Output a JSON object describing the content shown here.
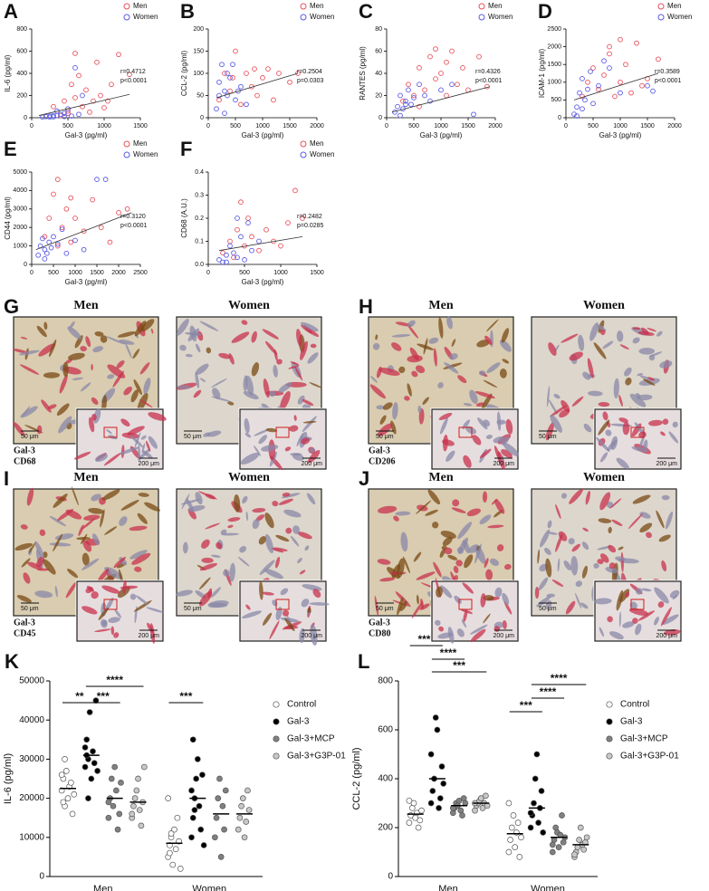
{
  "chart_data": [
    {
      "type": "scatter",
      "label": "A",
      "xlabel": "Gal-3 (pg/ml)",
      "ylabel": "IL-6 (pg/ml)",
      "xlim": [
        0,
        1500
      ],
      "xticks": [
        0,
        500,
        1000,
        1500
      ],
      "ylim": [
        0,
        800
      ],
      "yticks": [
        0,
        200,
        400,
        600,
        800
      ],
      "legend": "upper right",
      "annotations": [
        "r=0.4712",
        "p<0.0001"
      ],
      "fit": {
        "x": [
          100,
          1350
        ],
        "y": [
          20,
          210
        ]
      },
      "series": [
        {
          "name": "Men",
          "color": "#e8505b",
          "x": [
            300,
            400,
            450,
            500,
            550,
            600,
            650,
            700,
            750,
            800,
            850,
            900,
            950,
            1000,
            1050,
            1100,
            1200,
            1350,
            600,
            500
          ],
          "values": [
            100,
            20,
            150,
            60,
            300,
            180,
            380,
            100,
            250,
            50,
            150,
            500,
            200,
            90,
            150,
            300,
            570,
            390,
            580,
            40
          ]
        },
        {
          "name": "Women",
          "color": "#5a5ae6",
          "x": [
            150,
            200,
            250,
            300,
            350,
            400,
            450,
            500,
            550,
            600,
            650,
            700,
            250,
            350,
            450,
            300
          ],
          "values": [
            5,
            10,
            15,
            8,
            20,
            30,
            10,
            80,
            15,
            450,
            30,
            200,
            5,
            60,
            40,
            20
          ]
        }
      ]
    },
    {
      "type": "scatter",
      "label": "B",
      "xlabel": "Gal-3 (pg/ml)",
      "ylabel": "CCL-2 (pg/ml)",
      "xlim": [
        0,
        2000
      ],
      "xticks": [
        0,
        500,
        1000,
        1500,
        2000
      ],
      "ylim": [
        0,
        200
      ],
      "yticks": [
        0,
        50,
        100,
        150,
        200
      ],
      "legend": "upper right",
      "annotations": [
        "r=0.2504",
        "p=0.0303"
      ],
      "fit": {
        "x": [
          150,
          1650
        ],
        "y": [
          45,
          100
        ]
      },
      "series": [
        {
          "name": "Men",
          "color": "#e8505b",
          "x": [
            200,
            300,
            400,
            500,
            600,
            700,
            800,
            900,
            1000,
            1100,
            1200,
            1300,
            1500,
            1650,
            450,
            850
          ],
          "values": [
            40,
            100,
            60,
            150,
            30,
            100,
            70,
            50,
            90,
            110,
            40,
            100,
            80,
            100,
            90,
            110
          ]
        },
        {
          "name": "Women",
          "color": "#5a5ae6",
          "x": [
            150,
            200,
            250,
            300,
            350,
            400,
            450,
            500,
            550,
            600,
            300,
            200,
            350,
            700
          ],
          "values": [
            20,
            80,
            120,
            60,
            50,
            90,
            120,
            40,
            60,
            70,
            10,
            50,
            100,
            30
          ]
        }
      ]
    },
    {
      "type": "scatter",
      "label": "C",
      "xlabel": "Gal-3 (pg/ml)",
      "ylabel": "RANTES (pg/ml)",
      "xlim": [
        0,
        2000
      ],
      "xticks": [
        0,
        500,
        1000,
        1500,
        2000
      ],
      "ylim": [
        0,
        80
      ],
      "yticks": [
        0,
        20,
        40,
        60,
        80
      ],
      "legend": "upper right",
      "annotations": [
        "r=0.4326",
        "p<0.0001"
      ],
      "fit": {
        "x": [
          100,
          1900
        ],
        "y": [
          5,
          28
        ]
      },
      "series": [
        {
          "name": "Men",
          "color": "#e8505b",
          "x": [
            300,
            400,
            500,
            600,
            700,
            800,
            900,
            1000,
            1100,
            1200,
            1300,
            1400,
            1500,
            1700,
            1850,
            600,
            900,
            1100
          ],
          "values": [
            15,
            30,
            20,
            45,
            25,
            55,
            35,
            40,
            20,
            60,
            30,
            45,
            25,
            55,
            28,
            10,
            62,
            50
          ]
        },
        {
          "name": "Women",
          "color": "#5a5ae6",
          "x": [
            150,
            200,
            250,
            300,
            350,
            400,
            450,
            500,
            600,
            700,
            800,
            1000,
            1200,
            1600,
            250,
            350
          ],
          "values": [
            5,
            10,
            20,
            8,
            15,
            25,
            12,
            18,
            30,
            20,
            15,
            25,
            30,
            3,
            2,
            12
          ]
        }
      ]
    },
    {
      "type": "scatter",
      "label": "D",
      "xlabel": "Gal-3 (pg/ml)",
      "ylabel": "ICAM-1 (pg/ml)",
      "xlim": [
        0,
        2000
      ],
      "xticks": [
        0,
        500,
        1000,
        1500,
        2000
      ],
      "ylim": [
        0,
        2500
      ],
      "yticks": [
        0,
        500,
        1000,
        1500,
        2000,
        2500
      ],
      "legend": "upper right",
      "annotations": [
        "r=0.3589",
        "p<0.0001"
      ],
      "fit": {
        "x": [
          150,
          1700
        ],
        "y": [
          500,
          1250
        ]
      },
      "series": [
        {
          "name": "Men",
          "color": "#e8505b",
          "x": [
            300,
            400,
            500,
            600,
            700,
            800,
            900,
            1000,
            1100,
            1200,
            1300,
            1400,
            1500,
            1700,
            800,
            1000
          ],
          "values": [
            600,
            1000,
            1400,
            800,
            1200,
            1800,
            600,
            1000,
            1500,
            700,
            2100,
            900,
            1100,
            1650,
            2000,
            2200
          ]
        },
        {
          "name": "Women",
          "color": "#5a5ae6",
          "x": [
            150,
            200,
            250,
            300,
            350,
            400,
            450,
            500,
            600,
            700,
            800,
            1000,
            1500,
            1600,
            200,
            300
          ],
          "values": [
            100,
            300,
            700,
            1100,
            500,
            800,
            1300,
            400,
            900,
            1600,
            1400,
            700,
            900,
            750,
            50,
            250
          ]
        }
      ]
    },
    {
      "type": "scatter",
      "label": "E",
      "xlabel": "Gal-3 (pg/ml)",
      "ylabel": "CD44 (pg/ml)",
      "xlim": [
        0,
        2500
      ],
      "xticks": [
        0,
        500,
        1000,
        1500,
        2000,
        2500
      ],
      "ylim": [
        0,
        5000
      ],
      "yticks": [
        0,
        1000,
        2000,
        3000,
        4000,
        5000
      ],
      "legend": "upper right",
      "annotations": [
        "r=0.3120",
        "p<0.0001"
      ],
      "fit": {
        "x": [
          100,
          2300
        ],
        "y": [
          800,
          2800
        ]
      },
      "series": [
        {
          "name": "Men",
          "color": "#e8505b",
          "x": [
            300,
            400,
            500,
            600,
            700,
            800,
            900,
            1000,
            1200,
            1400,
            1600,
            1800,
            2000,
            2200,
            600,
            900
          ],
          "values": [
            1500,
            2500,
            3800,
            1000,
            2000,
            3000,
            1200,
            2500,
            1800,
            3500,
            2000,
            1200,
            2800,
            3000,
            4600,
            3600
          ]
        },
        {
          "name": "Women",
          "color": "#5a5ae6",
          "x": [
            150,
            200,
            250,
            300,
            350,
            400,
            450,
            500,
            600,
            700,
            800,
            1000,
            1200,
            1500,
            1700,
            300
          ],
          "values": [
            500,
            1000,
            1400,
            800,
            600,
            1200,
            900,
            1500,
            1100,
            1900,
            600,
            1300,
            800,
            4600,
            4600,
            300
          ]
        }
      ]
    },
    {
      "type": "scatter",
      "label": "F",
      "xlabel": "Gal-3 (pg/ml)",
      "ylabel": "CD68 (A.U.)",
      "xlim": [
        0,
        1500
      ],
      "xticks": [
        0,
        500,
        1000,
        1500
      ],
      "ylim": [
        0,
        0.4
      ],
      "yticks": [
        {
          "value": 0,
          "label": "0.0"
        },
        0.1,
        0.2,
        0.3,
        0.4
      ],
      "legend": "upper right",
      "annotations": [
        "r=0.2482",
        "p=0.0285"
      ],
      "fit": {
        "x": [
          150,
          1300
        ],
        "y": [
          0.06,
          0.12
        ]
      },
      "series": [
        {
          "name": "Men",
          "color": "#e8505b",
          "x": [
            200,
            300,
            400,
            450,
            500,
            550,
            600,
            700,
            800,
            900,
            1000,
            1100,
            1200,
            1300,
            350
          ],
          "values": [
            0.05,
            0.1,
            0.15,
            0.27,
            0.08,
            0.2,
            0.12,
            0.06,
            0.15,
            0.1,
            0.08,
            0.18,
            0.32,
            0.2,
            0.03
          ]
        },
        {
          "name": "Women",
          "color": "#5a5ae6",
          "x": [
            150,
            200,
            250,
            300,
            350,
            400,
            450,
            500,
            550,
            600,
            250,
            400,
            700
          ],
          "values": [
            0.02,
            0.01,
            0.04,
            0.08,
            0.05,
            0.2,
            0.12,
            0.02,
            0.18,
            0.06,
            0.01,
            0.03,
            0.1
          ]
        }
      ]
    },
    {
      "type": "strip",
      "label": "K",
      "ylabel": "IL-6 (pg/ml)",
      "categories": [
        "Men",
        "Women"
      ],
      "ylim": [
        0,
        50000
      ],
      "yticks": [
        0,
        10000,
        20000,
        30000,
        40000,
        50000
      ],
      "annotations": [
        "**",
        "***",
        "****",
        "***"
      ],
      "series": [
        {
          "name": "Control",
          "color": "#ffffff",
          "values": [
            [
              22000,
              25000,
              18000,
              27000,
              20000,
              23000,
              24000,
              16000,
              21000,
              26000,
              19000,
              30000
            ],
            [
              5000,
              8000,
              10000,
              3000,
              12000,
              7000,
              15000,
              9000,
              2000,
              20000,
              6000,
              11000
            ]
          ],
          "means": [
            22500,
            8500
          ]
        },
        {
          "name": "Gal-3",
          "color": "#000000",
          "values": [
            [
              28000,
              35000,
              30000,
              42000,
              25000,
              32000,
              29000,
              45000,
              27000,
              33000,
              31000,
              20000
            ],
            [
              10000,
              15000,
              20000,
              25000,
              30000,
              18000,
              12000,
              26000,
              8000,
              22000,
              35000,
              17000
            ]
          ],
          "means": [
            31000,
            20000
          ]
        },
        {
          "name": "Gal-3+MCP",
          "color": "#808080",
          "values": [
            [
              15000,
              20000,
              25000,
              18000,
              28000,
              22000,
              12000,
              16000,
              24000,
              19000
            ],
            [
              10000,
              15000,
              20000,
              25000,
              5000,
              18000,
              12000,
              22000
            ]
          ],
          "means": [
            20000,
            16000
          ]
        },
        {
          "name": "Gal-3+G3P-01",
          "color": "#c8c8c8",
          "values": [
            [
              15000,
              18000,
              20000,
              22000,
              25000,
              17000,
              13000,
              19000,
              28000,
              16000
            ],
            [
              12000,
              15000,
              18000,
              20000,
              10000,
              14000,
              22000,
              17000
            ]
          ],
          "means": [
            19000,
            16000
          ]
        }
      ]
    },
    {
      "type": "strip",
      "label": "L",
      "ylabel": "CCL-2 (pg/ml)",
      "categories": [
        "Men",
        "Women"
      ],
      "ylim": [
        0,
        800
      ],
      "yticks": [
        0,
        200,
        400,
        600,
        800
      ],
      "annotations": [
        "****",
        "****",
        "***",
        "***",
        "****",
        "****"
      ],
      "series": [
        {
          "name": "Control",
          "color": "#ffffff",
          "values": [
            [
              220,
              250,
              280,
              300,
              240,
              260,
              200,
              230,
              270,
              310
            ],
            [
              100,
              150,
              200,
              250,
              120,
              180,
              220,
              80,
              160,
              300
            ]
          ],
          "means": [
            255,
            175
          ]
        },
        {
          "name": "Gal-3",
          "color": "#000000",
          "values": [
            [
              300,
              350,
              400,
              650,
              600,
              280,
              320,
              450,
              380,
              500
            ],
            [
              200,
              250,
              300,
              400,
              500,
              220,
              280,
              350,
              180,
              260
            ]
          ],
          "means": [
            400,
            280
          ]
        },
        {
          "name": "Gal-3+MCP",
          "color": "#808080",
          "values": [
            [
              260,
              280,
              300,
              290,
              310,
              270,
              250,
              320,
              300,
              280
            ],
            [
              100,
              150,
              200,
              180,
              120,
              170,
              250,
              140,
              160,
              130
            ]
          ],
          "means": [
            290,
            160
          ]
        },
        {
          "name": "Gal-3+G3P-01",
          "color": "#c8c8c8",
          "values": [
            [
              270,
              290,
              300,
              310,
              320,
              280,
              300,
              330,
              290,
              300
            ],
            [
              80,
              100,
              120,
              150,
              200,
              130,
              110,
              140,
              160,
              90
            ]
          ],
          "means": [
            300,
            130
          ]
        }
      ]
    }
  ],
  "micrographs": [
    {
      "label": "G",
      "columns": [
        "Men",
        "Women"
      ],
      "stains": [
        "Gal-3",
        "CD68"
      ],
      "stain_colors": [
        "#d8213c",
        "#8b4513"
      ],
      "scale_main": "50 μm",
      "scale_inset": "200 μm"
    },
    {
      "label": "H",
      "columns": [
        "Men",
        "Women"
      ],
      "stains": [
        "Gal-3",
        "CD206"
      ],
      "stain_colors": [
        "#d8213c",
        "#8b4513"
      ],
      "scale_main": "50 μm",
      "scale_inset": "200 μm"
    },
    {
      "label": "I",
      "columns": [
        "Men",
        "Women"
      ],
      "stains": [
        "Gal-3",
        "CD45"
      ],
      "stain_colors": [
        "#d8213c",
        "#8b4513"
      ],
      "scale_main": "50 μm",
      "scale_inset": "200 μm"
    },
    {
      "label": "J",
      "columns": [
        "Men",
        "Women"
      ],
      "stains": [
        "Gal-3",
        "CD80"
      ],
      "stain_colors": [
        "#d8213c",
        "#8b4513"
      ],
      "scale_main": "50 μm",
      "scale_inset": "200 μm"
    }
  ]
}
